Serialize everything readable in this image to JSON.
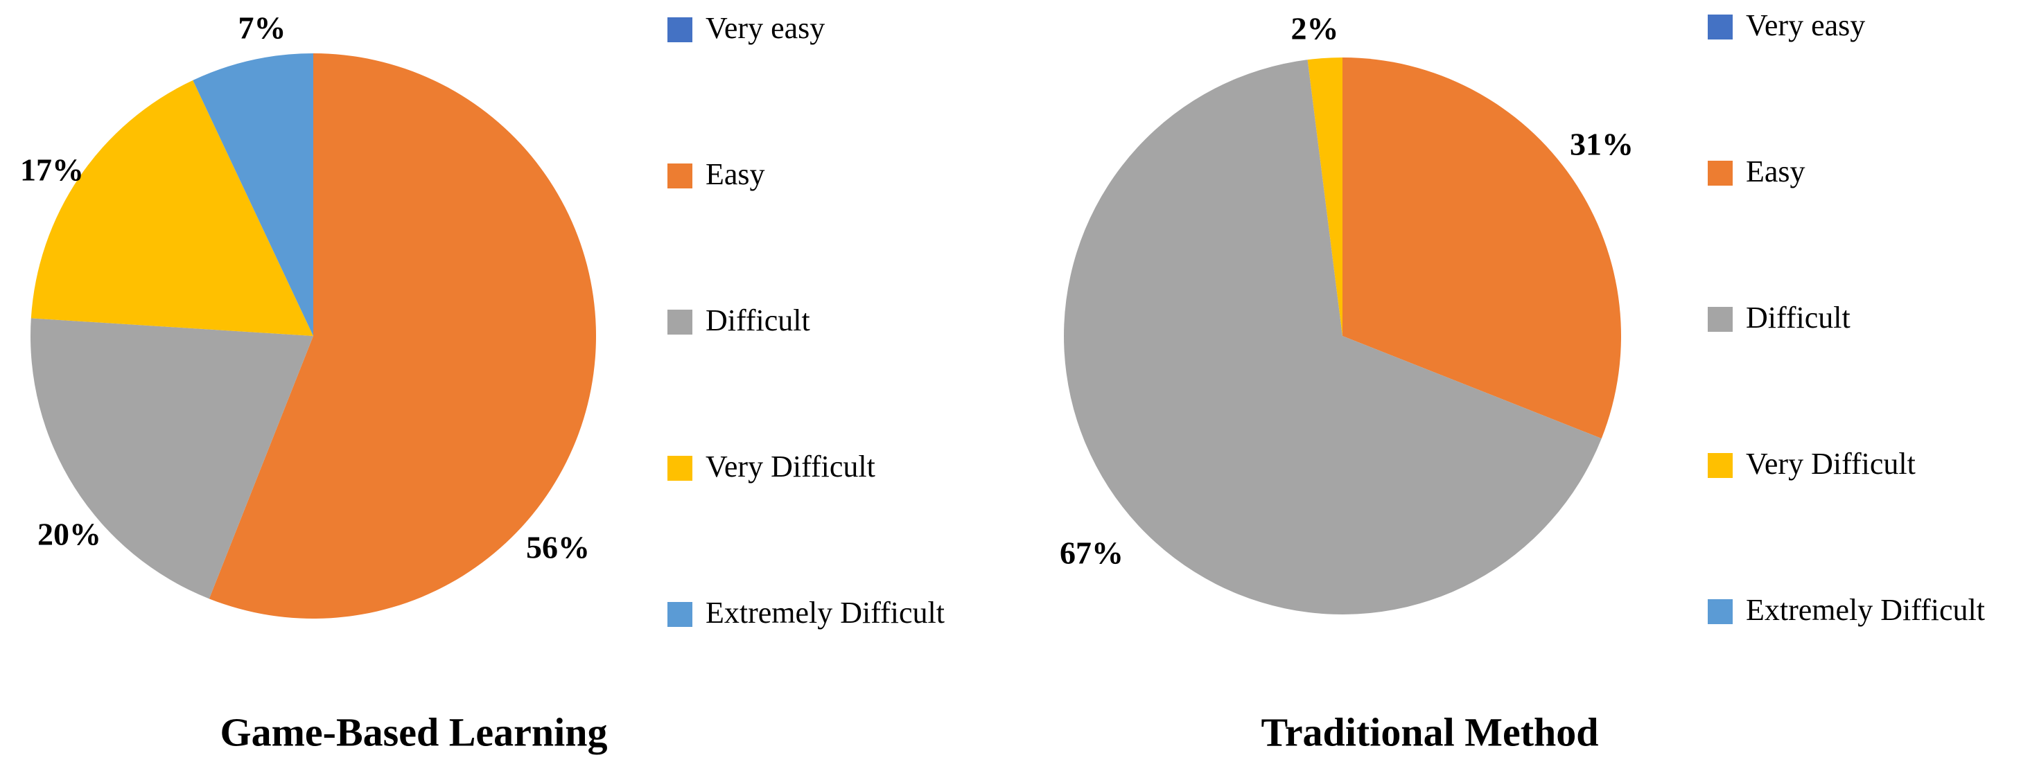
{
  "chart_data": [
    {
      "type": "pie",
      "title": "Game-Based Learning",
      "labels": [
        "Very easy",
        "Easy",
        "Difficult",
        "Very Difficult",
        "Extremely Difficult"
      ],
      "values": [
        0,
        56,
        20,
        17,
        7
      ],
      "value_labels": [
        "",
        "56%",
        "20%",
        "17%",
        "7%"
      ],
      "colors": [
        "#4472C4",
        "#ED7D31",
        "#A5A5A5",
        "#FFC000",
        "#5B9BD5"
      ],
      "legend": "right"
    },
    {
      "type": "pie",
      "title": "Traditional Method",
      "labels": [
        "Very easy",
        "Easy",
        "Difficult",
        "Very Difficult",
        "Extremely Difficult"
      ],
      "values": [
        0,
        31,
        67,
        2,
        0
      ],
      "value_labels": [
        "",
        "31%",
        "67%",
        "2%",
        ""
      ],
      "colors": [
        "#4472C4",
        "#ED7D31",
        "#A5A5A5",
        "#FFC000",
        "#5B9BD5"
      ],
      "legend": "right"
    }
  ]
}
